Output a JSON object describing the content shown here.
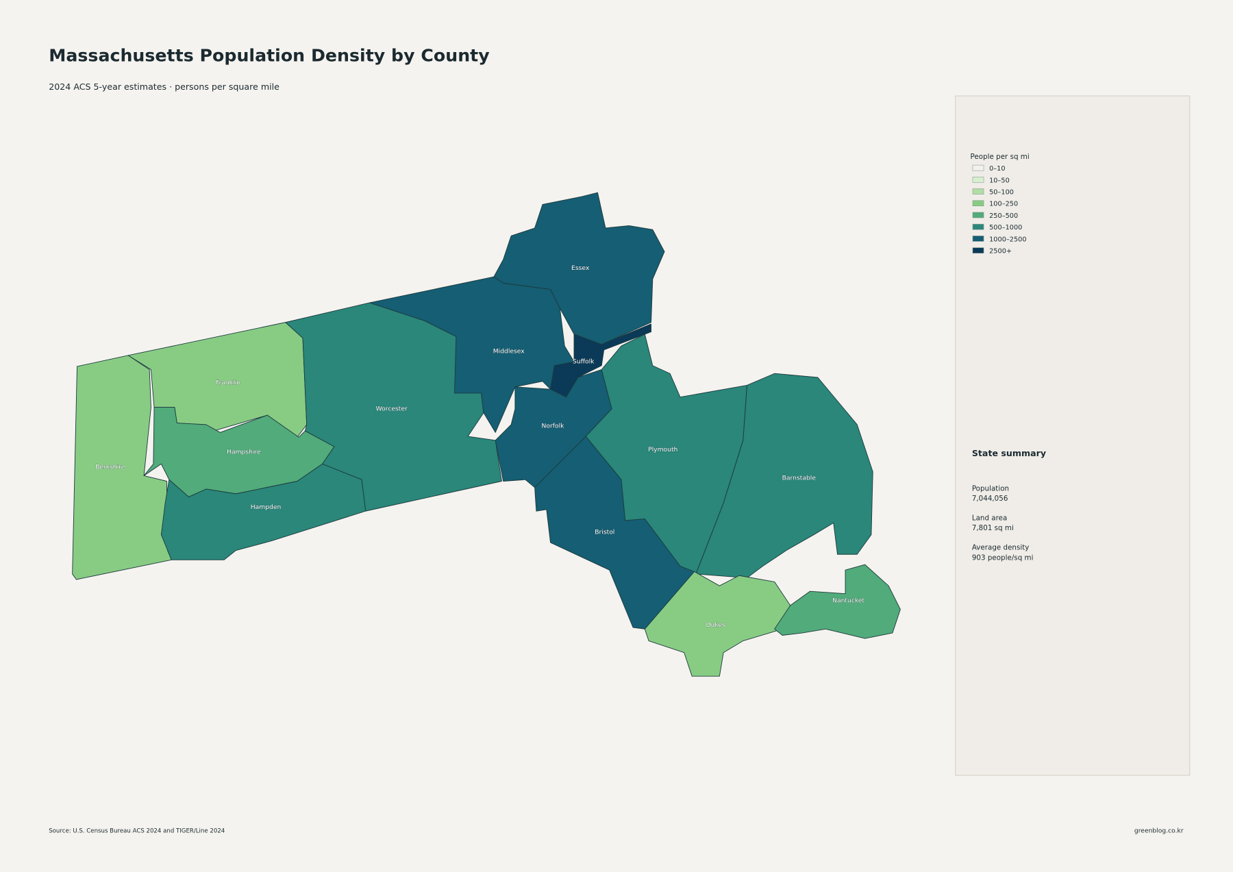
{
  "header": {
    "title": "Massachusetts Population Density by County",
    "subtitle": "2024 ACS 5-year estimates · persons per square mile"
  },
  "legend": {
    "title": "People per sq mi",
    "items": [
      {
        "label": "0–10",
        "color": "#f3f1ec"
      },
      {
        "label": "10–50",
        "color": "#d8efcf"
      },
      {
        "label": "50–100",
        "color": "#b1dea4"
      },
      {
        "label": "100–250",
        "color": "#88cc84"
      },
      {
        "label": "250–500",
        "color": "#52ab7a"
      },
      {
        "label": "500–1000",
        "color": "#2a877a"
      },
      {
        "label": "1000–2500",
        "color": "#155e73"
      },
      {
        "label": "2500+",
        "color": "#0a3a57"
      }
    ]
  },
  "counties": [
    {
      "name": "Berkshire",
      "color": "#88cc84"
    },
    {
      "name": "Franklin",
      "color": "#88cc84"
    },
    {
      "name": "Hampshire",
      "color": "#52ab7a"
    },
    {
      "name": "Hampden",
      "color": "#2a877a"
    },
    {
      "name": "Worcester",
      "color": "#2a877a"
    },
    {
      "name": "Middlesex",
      "color": "#155e73"
    },
    {
      "name": "Essex",
      "color": "#155e73"
    },
    {
      "name": "Suffolk",
      "color": "#0a3a57"
    },
    {
      "name": "Norfolk",
      "color": "#155e73"
    },
    {
      "name": "Plymouth",
      "color": "#2a877a"
    },
    {
      "name": "Bristol",
      "color": "#155e73"
    },
    {
      "name": "Barnstable",
      "color": "#2a877a"
    },
    {
      "name": "Dukes",
      "color": "#88cc84"
    },
    {
      "name": "Nantucket",
      "color": "#52ab7a"
    }
  ],
  "summary": {
    "title": "State summary",
    "items": [
      {
        "label": "Population",
        "value": "7,044,056"
      },
      {
        "label": "Land area",
        "value": "7,801 sq mi"
      },
      {
        "label": "Average density",
        "value": "903 people/sq mi"
      }
    ]
  },
  "footer": {
    "source": "Source: U.S. Census Bureau ACS 2024 and TIGER/Line 2024",
    "credit": "greenblog.co.kr"
  }
}
